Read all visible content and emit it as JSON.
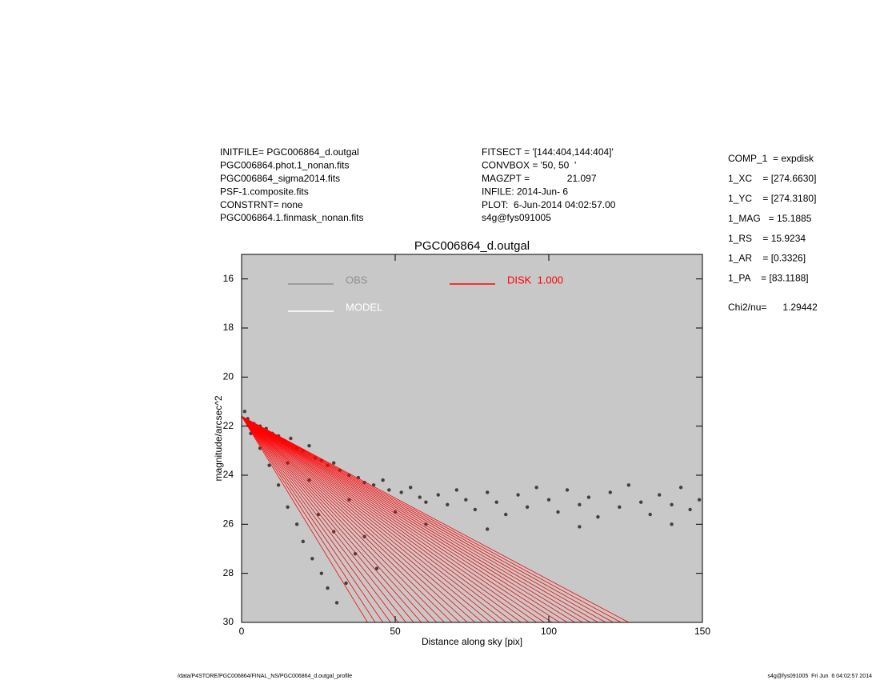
{
  "header": {
    "left": [
      "INITFILE= PGC006864_d.outgal",
      "PGC006864.phot.1_nonan.fits",
      "PGC006864_sigma2014.fits",
      "PSF-1.composite.fits",
      "CONSTRNT= none",
      "PGC006864.1.finmask_nonan.fits"
    ],
    "middle": [
      "FITSECT = '[144:404,144:404]'",
      "CONVBOX = '50, 50  '",
      "MAGZPT =              21.097",
      "INFILE: 2014-Jun- 6",
      "PLOT:  6-Jun-2014 04:02:57.00",
      "s4g@fys091005"
    ],
    "right": [
      "COMP_1  = expdisk",
      "1_XC    = [274.6630]",
      "1_YC    = [274.3180]",
      "1_MAG   = 15.1885",
      "1_RS    = 15.9234",
      "1_AR    = [0.3326]",
      "1_PA    = [83.1188]"
    ],
    "chi": "Chi2/nu=      1.29442"
  },
  "footer": {
    "left": "/data/P4STORE/PGC006864/FINAL_NS/PGC006864_d.outgal_profile",
    "right": "s4g@fys091005  Fri Jun  6 04:02:57 2014"
  },
  "chart_data": {
    "type": "scatter",
    "title": "PGC006864_d.outgal",
    "xlabel": "Distance along sky [pix]",
    "ylabel": "magnitude/arcsec^2",
    "xlim": [
      0,
      150
    ],
    "ylim": [
      15,
      30
    ],
    "y_reversed": true,
    "xticks": [
      0,
      50,
      100,
      150
    ],
    "yticks": [
      16,
      18,
      20,
      22,
      24,
      26,
      28,
      30
    ],
    "background": "#c8c8c8",
    "legend": [
      {
        "name": "OBS",
        "color": "#909090"
      },
      {
        "name": "MODEL",
        "color": "#ffffff"
      },
      {
        "name": "DISK  1.000",
        "color": "#ff0000"
      }
    ],
    "series": [
      {
        "name": "OBS",
        "color": "#404040",
        "x": [
          1,
          2,
          4,
          6,
          8,
          10,
          12,
          14,
          16,
          18,
          20,
          22,
          24,
          26,
          28,
          30,
          32,
          35,
          38,
          40,
          43,
          46,
          48,
          52,
          55,
          58,
          60,
          64,
          67,
          70,
          73,
          76,
          80,
          83,
          86,
          90,
          93,
          96,
          100,
          103,
          106,
          110,
          113,
          116,
          120,
          123,
          126,
          130,
          133,
          136,
          140,
          143,
          146,
          149,
          3,
          6,
          9,
          12,
          15,
          18,
          20,
          23,
          26,
          28,
          31,
          34,
          37,
          40,
          44,
          30,
          25,
          60,
          80,
          110,
          140,
          15,
          22,
          35,
          50
        ],
        "values": [
          21.4,
          21.7,
          21.9,
          22.0,
          22.1,
          22.3,
          22.4,
          22.6,
          22.5,
          22.9,
          23.0,
          22.8,
          23.3,
          23.4,
          23.6,
          23.5,
          23.8,
          24.0,
          24.1,
          24.3,
          24.4,
          24.2,
          24.6,
          24.7,
          24.5,
          24.9,
          25.1,
          24.8,
          25.2,
          24.6,
          25.0,
          25.4,
          24.7,
          25.1,
          25.6,
          24.8,
          25.3,
          24.5,
          25.0,
          25.5,
          24.6,
          25.2,
          24.9,
          25.7,
          24.7,
          25.3,
          24.4,
          25.1,
          25.6,
          24.8,
          25.2,
          24.5,
          25.4,
          25.0,
          22.3,
          22.9,
          23.6,
          24.4,
          25.3,
          26.0,
          26.7,
          27.4,
          28.0,
          28.6,
          29.2,
          28.4,
          27.2,
          26.5,
          27.8,
          26.3,
          25.6,
          26.0,
          26.2,
          26.1,
          26.0,
          23.5,
          24.2,
          25.0,
          25.5
        ]
      }
    ],
    "disk_fan": {
      "name": "DISK  1.000",
      "color": "#ff0000",
      "x0": 0,
      "y0": 21.6,
      "y1": 30,
      "x1": [
        41,
        43.5,
        46,
        48.5,
        51,
        53.5,
        56,
        58.5,
        61,
        63.5,
        66,
        68.5,
        71,
        73.5,
        76,
        78.5,
        81,
        83.5,
        86,
        88.5,
        91,
        93.5,
        96,
        98.5,
        101,
        103.5,
        106,
        108.5,
        111,
        113.5,
        116,
        118.5,
        121,
        123.5,
        126
      ]
    }
  }
}
